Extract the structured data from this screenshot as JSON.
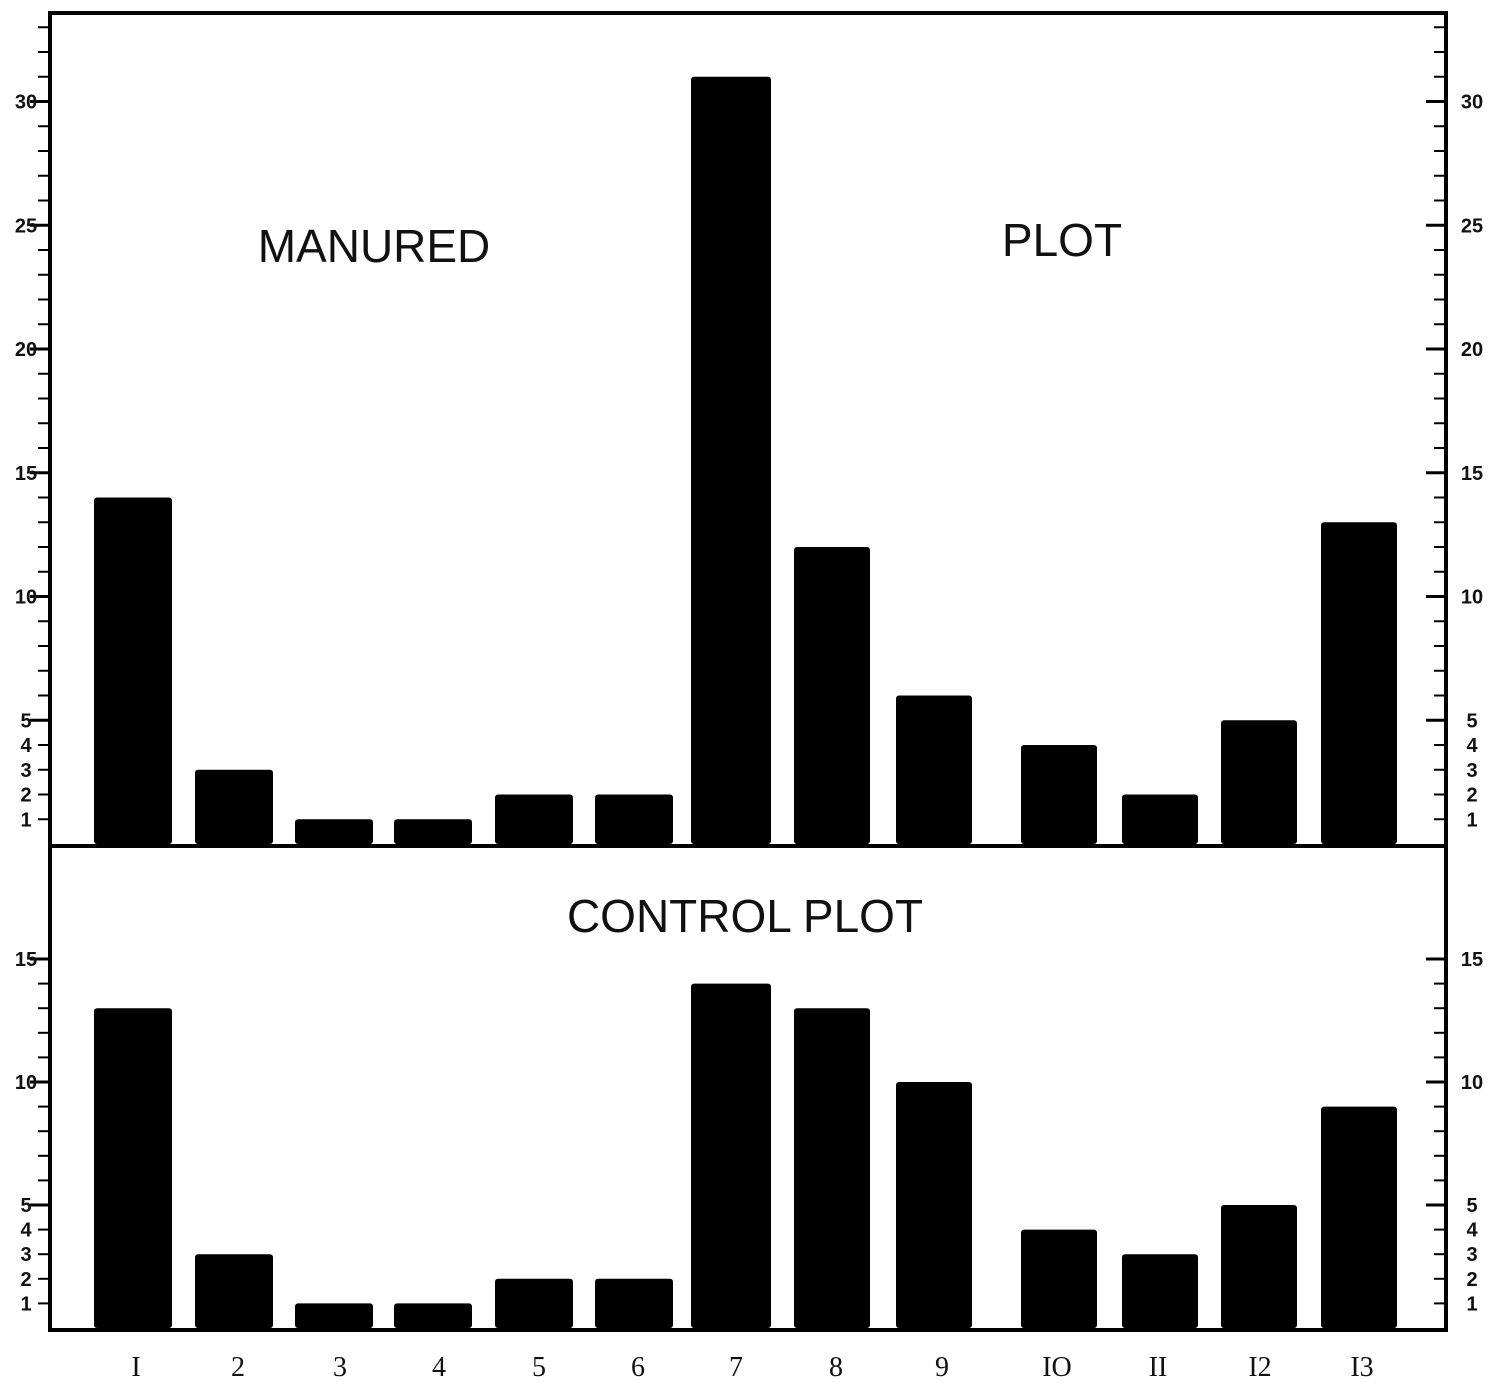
{
  "chart_data": [
    {
      "type": "bar",
      "panel": "manured",
      "title_parts": [
        "MANURED",
        "PLOT"
      ],
      "categories": [
        "1",
        "2",
        "3",
        "4",
        "5",
        "6",
        "7",
        "8",
        "9",
        "10",
        "11",
        "12",
        "13"
      ],
      "values": [
        14,
        3,
        1,
        1,
        2,
        2,
        31,
        12,
        6,
        4,
        2,
        5,
        13
      ],
      "ylim": [
        0,
        33
      ],
      "yticks": [
        1,
        2,
        3,
        4,
        5,
        10,
        15,
        20,
        25,
        30
      ],
      "ytick_labels_left": [
        "1",
        "2",
        "3",
        "4",
        "5",
        "10",
        "15",
        "20",
        "25",
        "30"
      ],
      "ytick_labels_right": [
        "1",
        "2",
        "3",
        "4",
        "5",
        "10",
        "15",
        "20",
        "25",
        "30"
      ],
      "bar_color": "#000000"
    },
    {
      "type": "bar",
      "panel": "control",
      "title": "CONTROL PLOT",
      "categories": [
        "1",
        "2",
        "3",
        "4",
        "5",
        "6",
        "7",
        "8",
        "9",
        "10",
        "11",
        "12",
        "13"
      ],
      "category_labels": [
        "I",
        "2",
        "3",
        "4",
        "5",
        "6",
        "7",
        "8",
        "9",
        "IO",
        "II",
        "I2",
        "I3"
      ],
      "values": [
        13,
        3,
        1,
        1,
        2,
        2,
        14,
        13,
        10,
        4,
        3,
        5,
        9
      ],
      "ylim": [
        0,
        15
      ],
      "yticks": [
        1,
        2,
        3,
        4,
        5,
        10,
        15
      ],
      "ytick_labels_left": [
        "1",
        "2",
        "3",
        "4",
        "5",
        "10",
        "15"
      ],
      "ytick_labels_right": [
        "1",
        "2",
        "3",
        "4",
        "5",
        "10",
        "15"
      ],
      "bar_color": "#000000"
    }
  ]
}
